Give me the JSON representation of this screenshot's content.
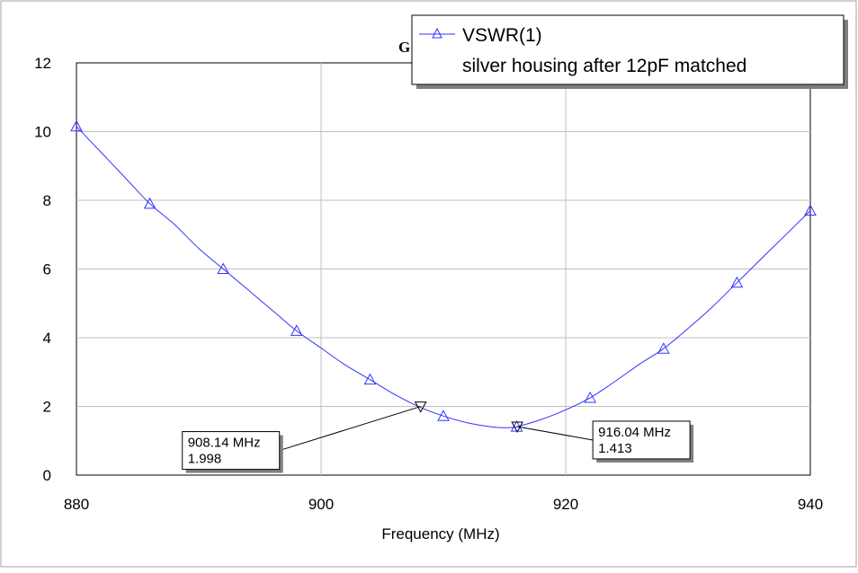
{
  "chart_data": {
    "type": "line",
    "title": "G",
    "xlabel": "Frequency (MHz)",
    "ylabel": "",
    "xlim": [
      880,
      940
    ],
    "ylim": [
      0,
      12
    ],
    "xticks": [
      880,
      900,
      920,
      940
    ],
    "yticks": [
      0,
      2,
      4,
      6,
      8,
      10,
      12
    ],
    "xtick_labels": [
      "880",
      "900",
      "920",
      "940"
    ],
    "ytick_labels": [
      "0",
      "2",
      "4",
      "6",
      "8",
      "10",
      "12"
    ],
    "grid": true,
    "legend": {
      "position": "top-right",
      "entries": [
        "VSWR(1)",
        "silver housing after 12pF matched"
      ]
    },
    "series": [
      {
        "name": "VSWR(1)",
        "color": "#3333ff",
        "marker": "triangle",
        "x": [
          880,
          882,
          884,
          886,
          888,
          890,
          892,
          894,
          896,
          898,
          900,
          902,
          904,
          906,
          908,
          910,
          912,
          914,
          915,
          916,
          918,
          920,
          922,
          924,
          926,
          928,
          930,
          932,
          934,
          936,
          938,
          940
        ],
        "y": [
          10.15,
          9.4,
          8.65,
          7.9,
          7.3,
          6.6,
          6.0,
          5.4,
          4.8,
          4.2,
          3.7,
          3.2,
          2.78,
          2.35,
          1.99,
          1.72,
          1.52,
          1.4,
          1.38,
          1.41,
          1.62,
          1.9,
          2.25,
          2.72,
          3.22,
          3.68,
          4.27,
          4.9,
          5.6,
          6.3,
          7.0,
          7.7
        ]
      }
    ],
    "marker_points_x": [
      880,
      886,
      892,
      898,
      904,
      910,
      916,
      922,
      928,
      934,
      940
    ],
    "marker_points_y": [
      10.15,
      7.9,
      6.0,
      4.2,
      2.78,
      1.72,
      1.41,
      2.25,
      3.68,
      5.6,
      7.7
    ],
    "annotations": [
      {
        "x": 908.14,
        "y": 1.998,
        "label_line1": "908.14 MHz",
        "label_line2": "1.998",
        "box_anchor": "lower-left"
      },
      {
        "x": 916.04,
        "y": 1.413,
        "label_line1": "916.04 MHz",
        "label_line2": "1.413",
        "box_anchor": "lower-right"
      }
    ]
  }
}
